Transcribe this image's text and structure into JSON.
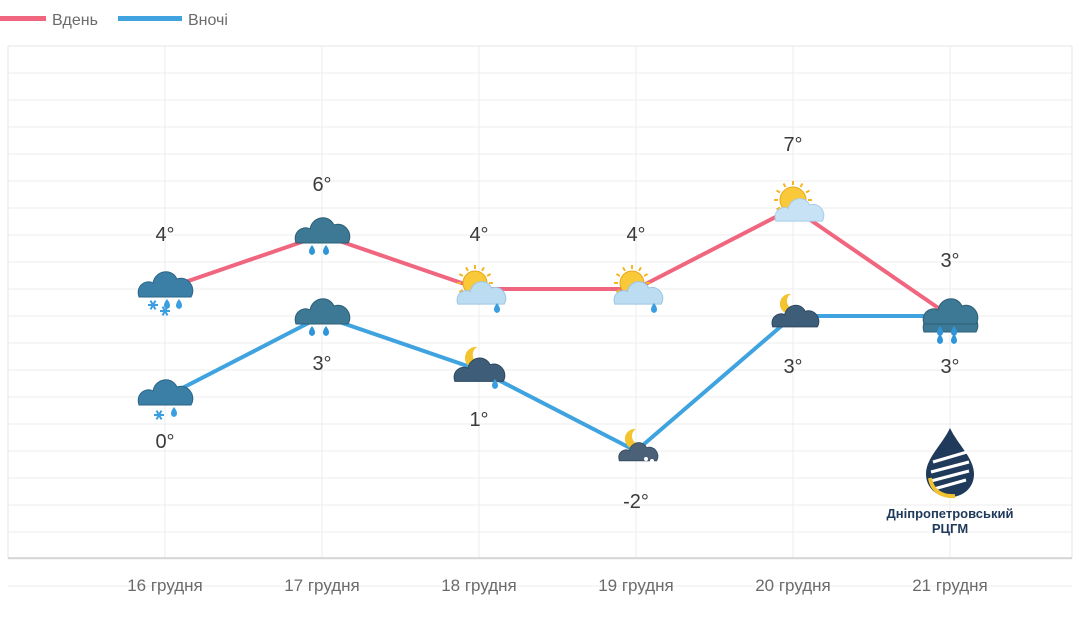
{
  "legend": {
    "placement": "top-left",
    "items": [
      {
        "label": "Вдень",
        "color": "#f0667f"
      },
      {
        "label": "Вночі",
        "color": "#3fa3e0"
      }
    ]
  },
  "chart_data": {
    "type": "line",
    "categories": [
      "16 грудня",
      "17 грудня",
      "18 грудня",
      "19 грудня",
      "20 грудня",
      "21 грудня"
    ],
    "ylim": [
      -7,
      12
    ],
    "grid": true,
    "series": [
      {
        "name": "Вдень",
        "color": "#f0667f",
        "values": [
          4,
          6,
          4,
          4,
          7,
          3
        ],
        "labels": [
          "4°",
          "6°",
          "4°",
          "4°",
          "7°",
          "3°"
        ],
        "icons": [
          "cloud-rain-snow-icon",
          "cloud-rain-icon",
          "sun-cloud-rain-icon",
          "sun-cloud-rain-icon",
          "sun-cloud-icon",
          "cloud-rain-icon"
        ]
      },
      {
        "name": "Вночі",
        "color": "#3fa3e0",
        "values": [
          0,
          3,
          1,
          -2,
          3,
          3
        ],
        "labels": [
          "0°",
          "3°",
          "1°",
          "-2°",
          "3°",
          "3°"
        ],
        "icons": [
          "cloud-snow-rain-icon",
          "cloud-rain-icon",
          "moon-cloud-rain-icon",
          "moon-cloud-snow-icon",
          "moon-cloud-icon",
          "cloud-rain-icon"
        ]
      }
    ]
  },
  "logo": {
    "name": "Дніпропетровський",
    "sub": "РЦГМ",
    "icon": "drop-logo-icon"
  }
}
